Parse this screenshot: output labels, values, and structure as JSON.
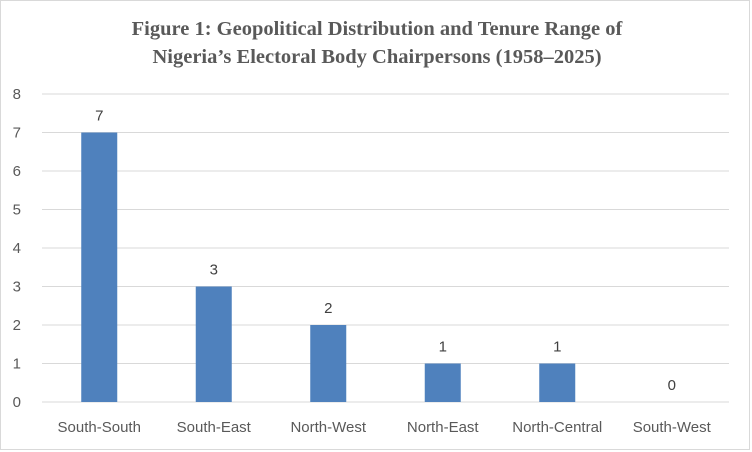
{
  "chart_data": {
    "type": "bar",
    "title": "Figure 1: Geopolitical Distribution and Tenure Range of Nigeria’s Electoral Body Chairpersons (1958–2025)",
    "title_lines": [
      "Figure 1: Geopolitical Distribution and Tenure Range of",
      "Nigeria’s Electoral Body Chairpersons (1958–2025)"
    ],
    "categories": [
      "South-South",
      "South-East",
      "North-West",
      "North-East",
      "North-Central",
      "South-West"
    ],
    "values": [
      7,
      3,
      2,
      1,
      1,
      0
    ],
    "data_labels": [
      "7",
      "3",
      "2",
      "1",
      "1",
      "0"
    ],
    "ylim": [
      0,
      8
    ],
    "yticks": [
      "0",
      "1",
      "2",
      "3",
      "4",
      "5",
      "6",
      "7",
      "8"
    ],
    "xlabel": "",
    "ylabel": "",
    "grid": true,
    "legend": "none",
    "bar_color": "#4f81bd",
    "grid_color": "#d9d9d9",
    "text_color": "#595959"
  }
}
